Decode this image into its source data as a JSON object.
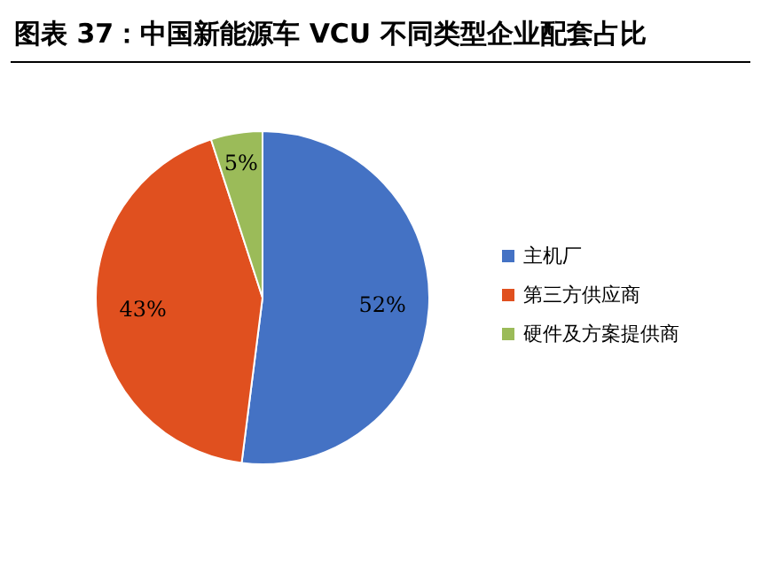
{
  "chart_data": {
    "type": "pie",
    "title": "图表 37：中国新能源车 VCU 不同类型企业配套占比",
    "categories": [
      "主机厂",
      "第三方供应商",
      "硬件及方案提供商"
    ],
    "values": [
      52,
      43,
      5
    ],
    "colors": [
      "#4472c4",
      "#e0501f",
      "#9bbb59"
    ],
    "value_labels": [
      "52%",
      "43%",
      "5%"
    ],
    "legend": "right"
  }
}
